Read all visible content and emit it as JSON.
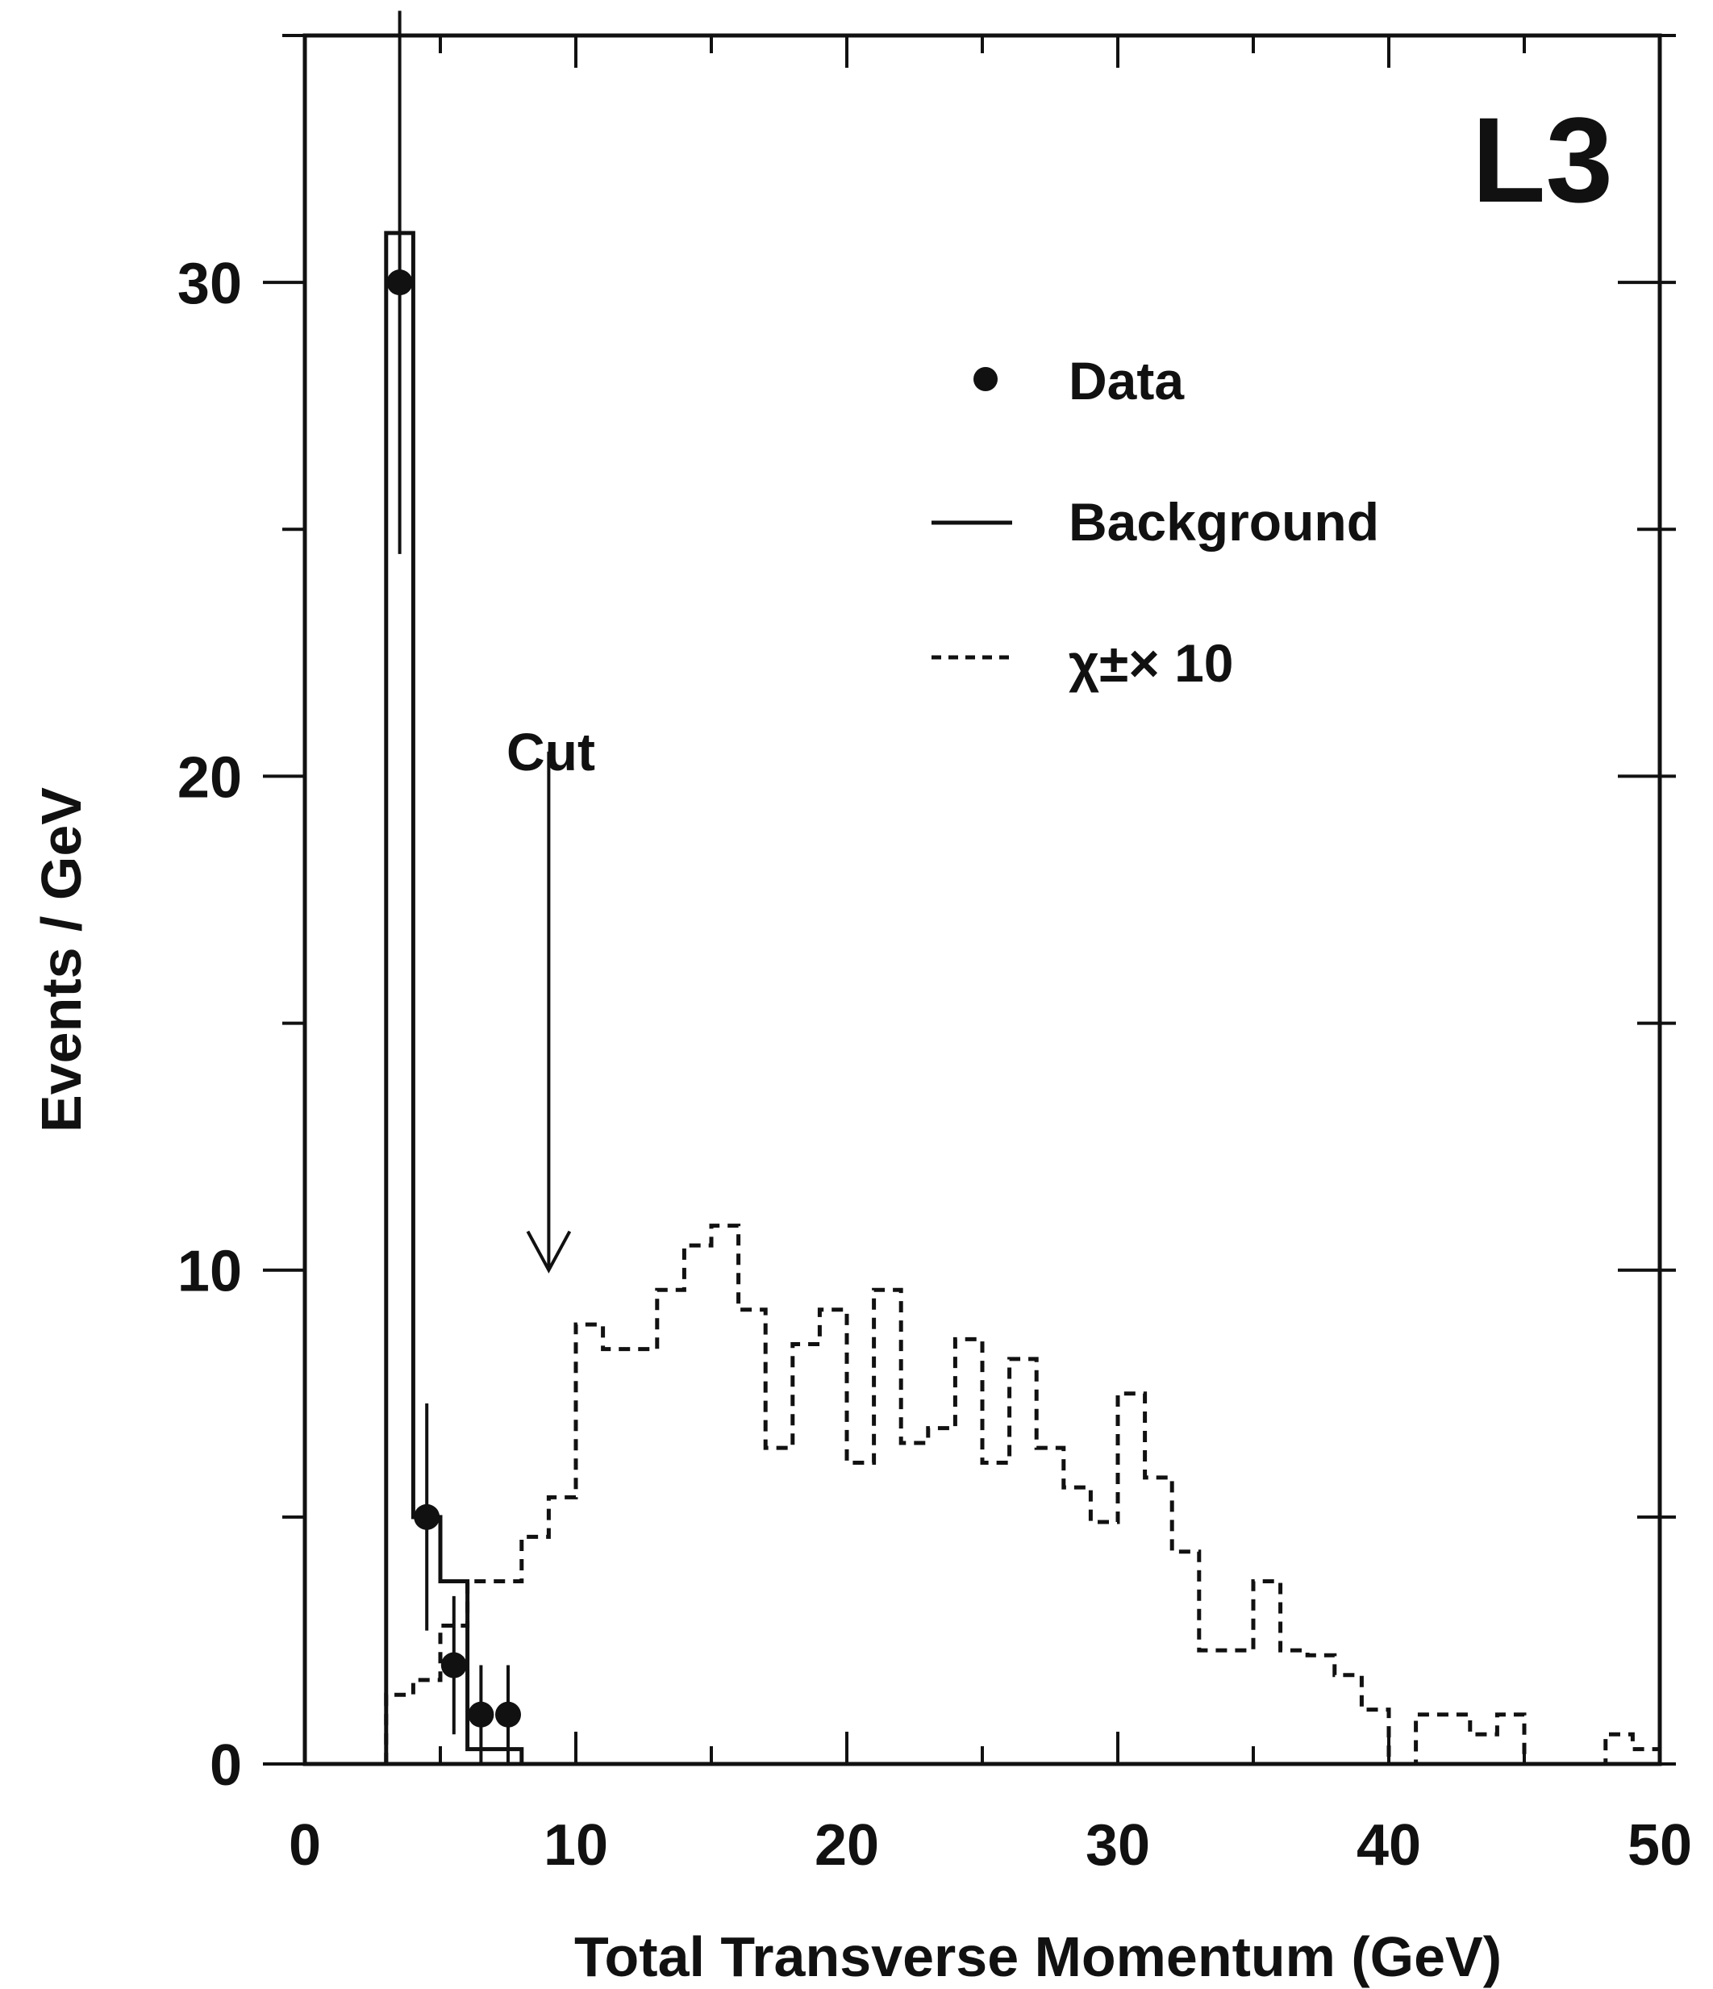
{
  "chart_data": {
    "type": "histogram",
    "experiment_label": "L3",
    "xlabel": "Total Transverse Momentum (GeV)",
    "ylabel": "Events / GeV",
    "xlim": [
      0,
      50
    ],
    "ylim": [
      0,
      35
    ],
    "x_ticks": [
      0,
      10,
      20,
      30,
      40,
      50
    ],
    "y_ticks": [
      0,
      10,
      20,
      30
    ],
    "legend": {
      "position": "top-right",
      "entries": [
        {
          "label": "Data",
          "style": "marker"
        },
        {
          "label": "Background",
          "style": "solid"
        },
        {
          "label": "χ±× 10",
          "style": "dashed"
        }
      ]
    },
    "cut": {
      "label": "Cut",
      "x": 9,
      "arrow_from_y": 20.5,
      "arrow_to_y": 10
    },
    "series": [
      {
        "name": "Data",
        "style": "points",
        "points": [
          {
            "x": 3.5,
            "y": 30,
            "err_low": 5.5,
            "err_high": 5.5
          },
          {
            "x": 4.5,
            "y": 5,
            "err_low": 2.3,
            "err_high": 2.3
          },
          {
            "x": 5.5,
            "y": 2,
            "err_low": 1.4,
            "err_high": 1.4
          },
          {
            "x": 6.5,
            "y": 1,
            "err_low": 1.0,
            "err_high": 1.0
          },
          {
            "x": 7.5,
            "y": 1,
            "err_low": 1.0,
            "err_high": 1.0
          }
        ]
      },
      {
        "name": "Background",
        "style": "solid-step",
        "edges": [
          3,
          4,
          5,
          6,
          7,
          8,
          50
        ],
        "values": [
          31,
          5,
          3.7,
          0.3,
          0.3,
          0
        ]
      },
      {
        "name": "χ±× 10",
        "style": "dashed-step",
        "edges": [
          3,
          4,
          5,
          6,
          7,
          8,
          9,
          10,
          11,
          12,
          13,
          14,
          15,
          16,
          17,
          18,
          19,
          20,
          21,
          22,
          23,
          24,
          25,
          26,
          27,
          28,
          29,
          30,
          31,
          32,
          33,
          34,
          35,
          36,
          37,
          38,
          39,
          40,
          41,
          42,
          43,
          44,
          45,
          46,
          47,
          48,
          49,
          50
        ],
        "values": [
          1.4,
          1.7,
          2.8,
          3.7,
          3.7,
          4.6,
          5.4,
          8.9,
          8.4,
          8.4,
          9.6,
          10.5,
          10.9,
          9.2,
          6.4,
          8.5,
          9.2,
          6.1,
          9.6,
          6.5,
          6.8,
          8.6,
          6.1,
          8.2,
          6.4,
          5.6,
          4.9,
          7.5,
          5.8,
          4.3,
          2.3,
          2.3,
          3.7,
          2.3,
          2.2,
          1.8,
          1.1,
          0.0,
          1.0,
          1.0,
          0.6,
          1.0,
          0.0,
          0.0,
          0.0,
          0.6,
          0.3
        ]
      }
    ]
  }
}
